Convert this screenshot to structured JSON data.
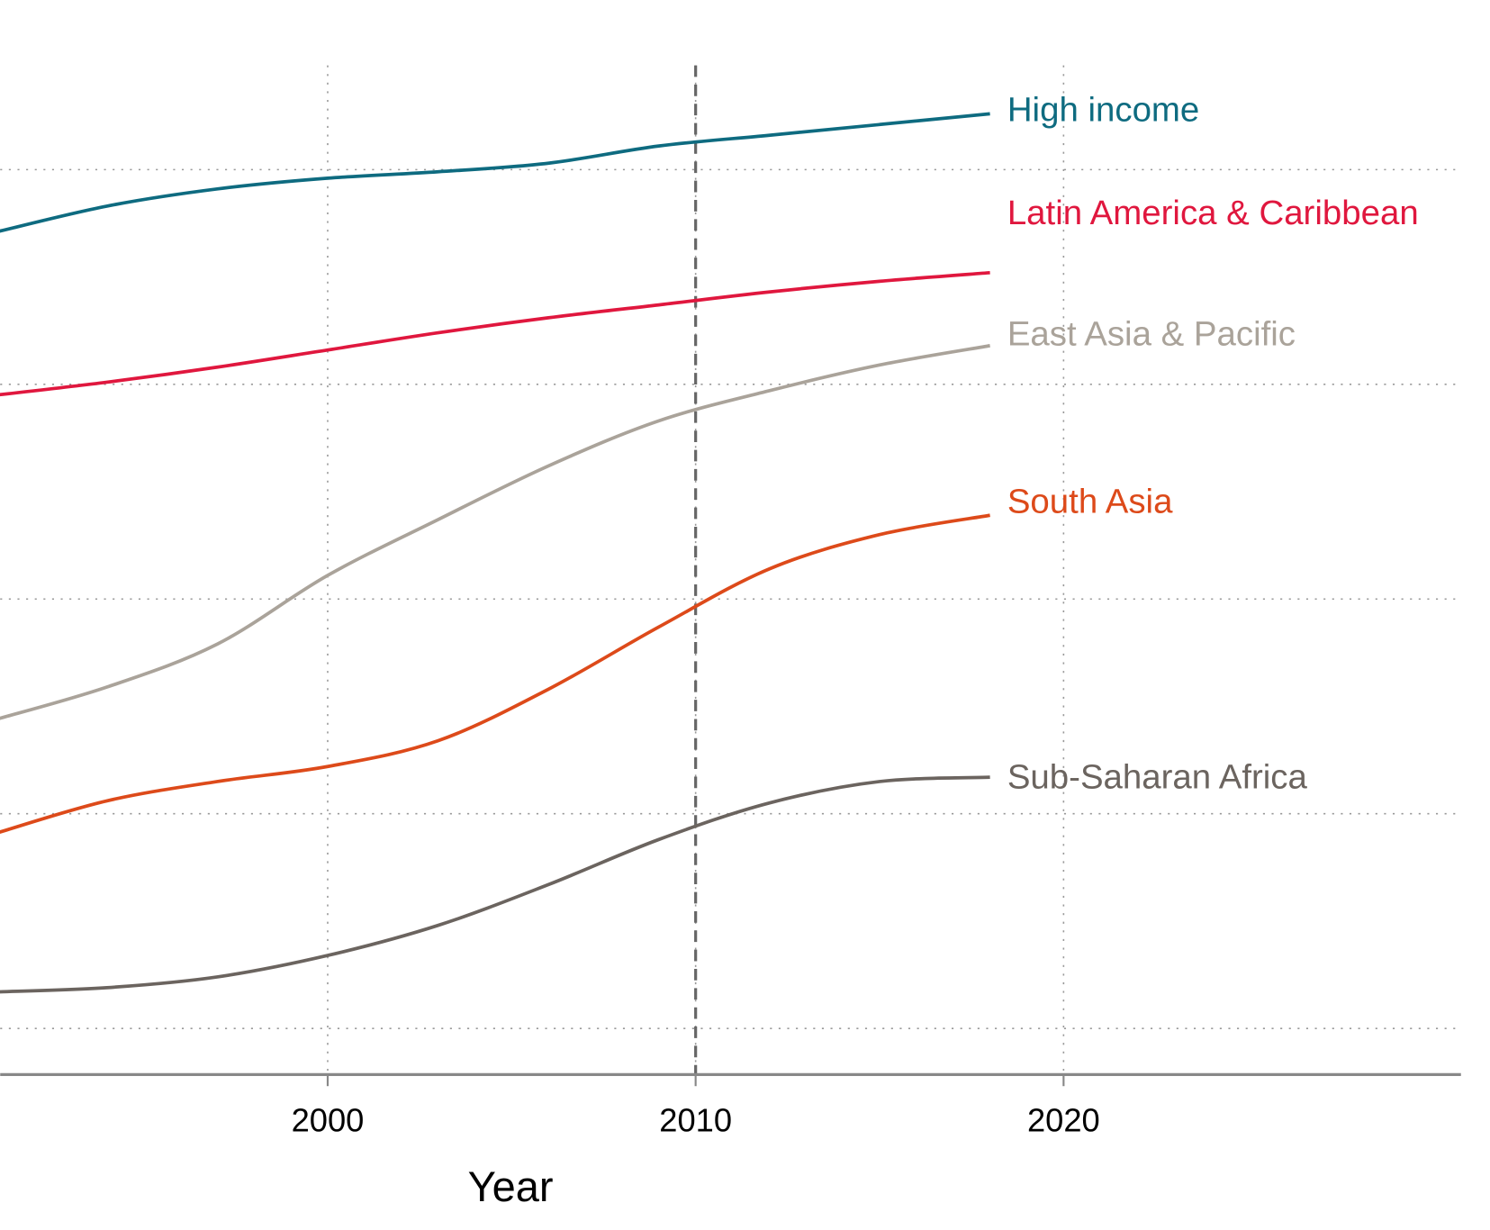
{
  "chart_data": {
    "type": "line",
    "x_label": "Year",
    "x": [
      1991,
      1994,
      1997,
      2000,
      2003,
      2006,
      2009,
      2012,
      2015,
      2018
    ],
    "series": [
      {
        "name": "High income",
        "color": "#0e6b80",
        "values": [
          3.71,
          3.83,
          3.91,
          3.96,
          3.99,
          4.03,
          4.11,
          4.16,
          4.21,
          4.26
        ]
      },
      {
        "name": "Latin America & Caribbean",
        "color": "#e0173e",
        "values": [
          2.95,
          3.01,
          3.08,
          3.16,
          3.24,
          3.31,
          3.37,
          3.43,
          3.48,
          3.52
        ]
      },
      {
        "name": "East Asia & Pacific",
        "color": "#aaa39a",
        "values": [
          1.44,
          1.59,
          1.79,
          2.11,
          2.37,
          2.62,
          2.83,
          2.97,
          3.09,
          3.18
        ]
      },
      {
        "name": "South Asia",
        "color": "#dd4a1a",
        "values": [
          0.91,
          1.06,
          1.15,
          1.22,
          1.34,
          1.58,
          1.87,
          2.14,
          2.3,
          2.39
        ]
      },
      {
        "name": "Sub-Saharan Africa",
        "color": "#6b645f",
        "values": [
          0.17,
          0.19,
          0.24,
          0.34,
          0.48,
          0.67,
          0.88,
          1.05,
          1.15,
          1.17
        ]
      }
    ],
    "xlim": [
      1991.1,
      2030.8
    ],
    "xticks": [
      2000,
      2010,
      2020
    ],
    "ylim": [
      -0.215,
      4.79
    ],
    "yticks": [
      0,
      1,
      2,
      3,
      4
    ],
    "grid": true,
    "vline": 2010
  }
}
